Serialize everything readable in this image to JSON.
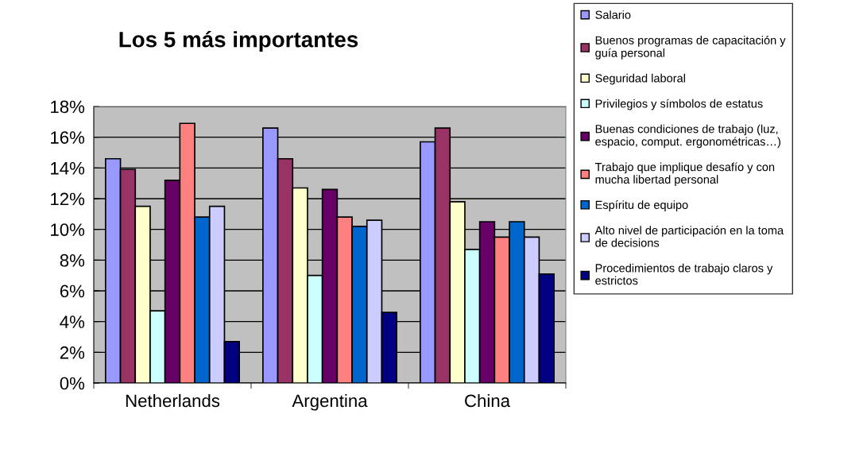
{
  "chart_data": {
    "type": "bar",
    "title": "Los 5 más importantes",
    "categories": [
      "Netherlands",
      "Argentina",
      "China"
    ],
    "series": [
      {
        "name": "Salario",
        "color": "#9999ff",
        "values": [
          14.6,
          16.6,
          15.7
        ]
      },
      {
        "name": "Buenos programas de capacitación y\nguía personal",
        "color": "#993366",
        "values": [
          13.9,
          14.6,
          16.6
        ]
      },
      {
        "name": "Seguridad laboral",
        "color": "#ffffcc",
        "values": [
          11.5,
          12.7,
          11.8
        ]
      },
      {
        "name": "Privilegios y símbolos de estatus",
        "color": "#ccffff",
        "values": [
          4.7,
          7.0,
          8.7
        ]
      },
      {
        "name": "Buenas condiciones de trabajo (luz,\nespacio, comput. ergonométricas…)",
        "color": "#660066",
        "values": [
          13.2,
          12.6,
          10.5
        ]
      },
      {
        "name": "Trabajo que implique desafío y con\nmucha libertad personal",
        "color": "#ff8080",
        "values": [
          16.9,
          10.8,
          9.5
        ]
      },
      {
        "name": "Espíritu de equipo",
        "color": "#0066cc",
        "values": [
          10.8,
          10.2,
          10.5
        ]
      },
      {
        "name": "Alto nivel de participación en la toma\nde decisions",
        "color": "#ccccff",
        "values": [
          11.5,
          10.6,
          9.5
        ]
      },
      {
        "name": "Procedimientos de trabajo claros y\nestrictos",
        "color": "#000080",
        "values": [
          2.7,
          4.6,
          7.1
        ]
      }
    ],
    "ylim": [
      0,
      18
    ],
    "yticks": [
      {
        "value": 0,
        "label": "0%"
      },
      {
        "value": 2,
        "label": "2%"
      },
      {
        "value": 4,
        "label": "4%"
      },
      {
        "value": 6,
        "label": "6%"
      },
      {
        "value": 8,
        "label": "8%"
      },
      {
        "value": 10,
        "label": "10%"
      },
      {
        "value": 12,
        "label": "12%"
      },
      {
        "value": 14,
        "label": "14%"
      },
      {
        "value": 16,
        "label": "16%"
      },
      {
        "value": 18,
        "label": "18%"
      }
    ],
    "grid": "y",
    "legend": "right"
  }
}
